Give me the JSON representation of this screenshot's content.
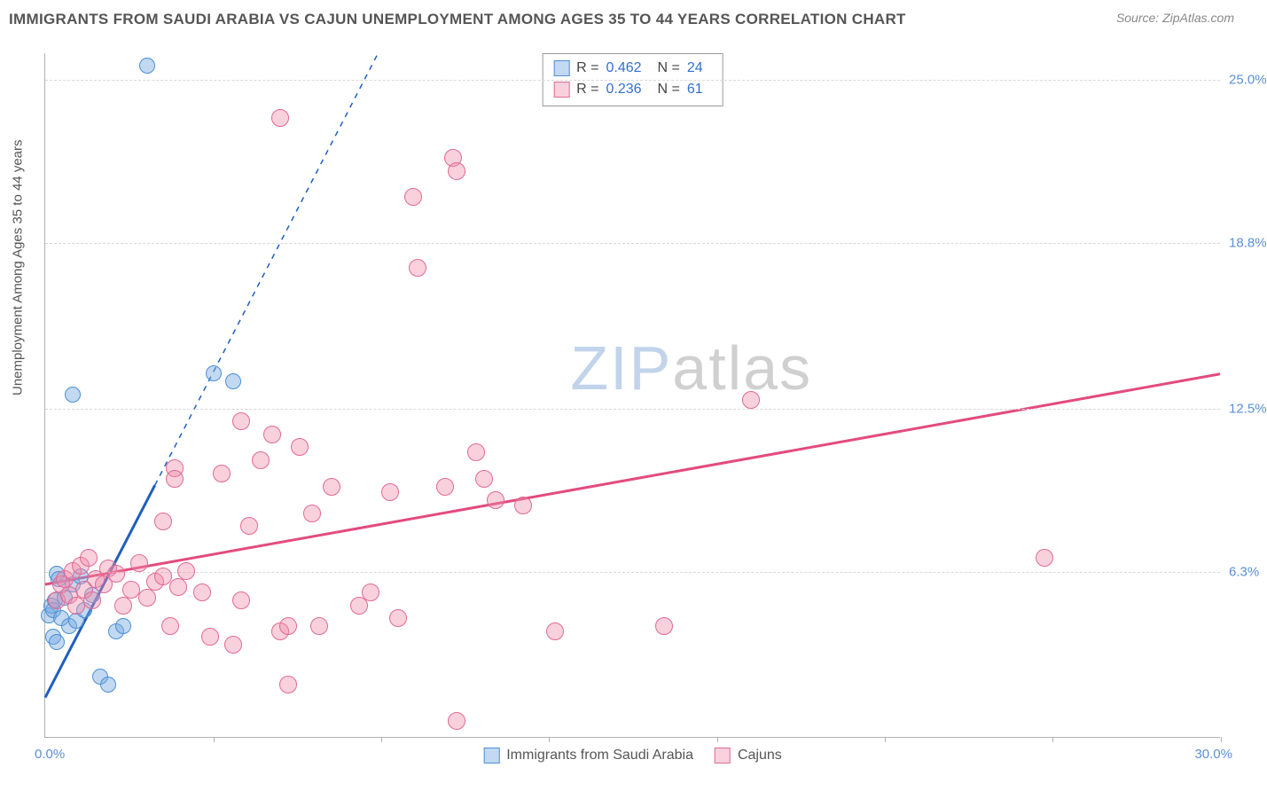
{
  "title": "IMMIGRANTS FROM SAUDI ARABIA VS CAJUN UNEMPLOYMENT AMONG AGES 35 TO 44 YEARS CORRELATION CHART",
  "source": "Source: ZipAtlas.com",
  "y_axis_title": "Unemployment Among Ages 35 to 44 years",
  "watermark_zip": "ZIP",
  "watermark_atlas": "atlas",
  "chart": {
    "type": "scatter",
    "xlim": [
      0,
      30
    ],
    "ylim": [
      0,
      26
    ],
    "x_min_label": "0.0%",
    "x_max_label": "30.0%",
    "xtick_positions": [
      4.29,
      8.57,
      12.86,
      17.14,
      21.43,
      25.71,
      30.0
    ],
    "y_gridlines": [
      6.3,
      12.5,
      18.8,
      25.0
    ],
    "y_grid_labels": [
      "6.3%",
      "12.5%",
      "18.8%",
      "25.0%"
    ],
    "grid_color": "#d8d8d8",
    "axis_color": "#b0b0b0",
    "tick_label_color": "#5b8fd6",
    "background_color": "#ffffff",
    "series": [
      {
        "key": "saudi",
        "label": "Immigrants from Saudi Arabia",
        "point_fill": "rgba(120,170,225,0.45)",
        "point_stroke": "#4b8fd6",
        "point_radius": 9,
        "trend_color": "#1f5fbf",
        "trend_dash": true,
        "trend_from": [
          0,
          1.5
        ],
        "trend_to": [
          8.5,
          26
        ],
        "trend_solid_to_x": 2.8,
        "R": "0.462",
        "N": "24",
        "points": [
          [
            0.1,
            4.6
          ],
          [
            0.15,
            5.0
          ],
          [
            0.2,
            3.8
          ],
          [
            0.2,
            4.8
          ],
          [
            0.25,
            5.2
          ],
          [
            0.3,
            6.2
          ],
          [
            0.3,
            3.6
          ],
          [
            0.35,
            6.0
          ],
          [
            0.4,
            4.5
          ],
          [
            0.5,
            5.3
          ],
          [
            0.6,
            4.2
          ],
          [
            0.7,
            5.8
          ],
          [
            0.8,
            4.4
          ],
          [
            0.9,
            6.1
          ],
          [
            1.0,
            4.8
          ],
          [
            1.2,
            5.4
          ],
          [
            1.4,
            2.3
          ],
          [
            1.6,
            2.0
          ],
          [
            1.8,
            4.0
          ],
          [
            2.0,
            4.2
          ],
          [
            0.7,
            13.0
          ],
          [
            4.3,
            13.8
          ],
          [
            4.8,
            13.5
          ],
          [
            2.6,
            25.5
          ]
        ]
      },
      {
        "key": "cajun",
        "label": "Cajuns",
        "point_fill": "rgba(240,140,170,0.40)",
        "point_stroke": "#e06a95",
        "point_radius": 10,
        "trend_color": "#e34b7d",
        "trend_dash": false,
        "trend_from": [
          0,
          5.8
        ],
        "trend_to": [
          30,
          13.8
        ],
        "R": "0.236",
        "N": "61",
        "points": [
          [
            0.3,
            5.2
          ],
          [
            0.4,
            5.8
          ],
          [
            0.5,
            6.0
          ],
          [
            0.6,
            5.4
          ],
          [
            0.7,
            6.3
          ],
          [
            0.8,
            5.0
          ],
          [
            0.9,
            6.5
          ],
          [
            1.0,
            5.6
          ],
          [
            1.1,
            6.8
          ],
          [
            1.2,
            5.2
          ],
          [
            1.3,
            6.0
          ],
          [
            1.5,
            5.8
          ],
          [
            1.6,
            6.4
          ],
          [
            1.8,
            6.2
          ],
          [
            2.0,
            5.0
          ],
          [
            2.2,
            5.6
          ],
          [
            2.4,
            6.6
          ],
          [
            2.6,
            5.3
          ],
          [
            2.8,
            5.9
          ],
          [
            3.0,
            6.1
          ],
          [
            3.2,
            4.2
          ],
          [
            3.4,
            5.7
          ],
          [
            3.6,
            6.3
          ],
          [
            3.0,
            8.2
          ],
          [
            3.3,
            10.2
          ],
          [
            3.3,
            9.8
          ],
          [
            4.0,
            5.5
          ],
          [
            4.2,
            3.8
          ],
          [
            4.5,
            10.0
          ],
          [
            5.0,
            5.2
          ],
          [
            5.0,
            12.0
          ],
          [
            5.2,
            8.0
          ],
          [
            5.5,
            10.5
          ],
          [
            5.8,
            11.5
          ],
          [
            6.0,
            4.0
          ],
          [
            6.2,
            4.2
          ],
          [
            6.2,
            2.0
          ],
          [
            6.5,
            11.0
          ],
          [
            6.8,
            8.5
          ],
          [
            7.0,
            4.2
          ],
          [
            7.3,
            9.5
          ],
          [
            8.0,
            5.0
          ],
          [
            8.3,
            5.5
          ],
          [
            8.8,
            9.3
          ],
          [
            9.0,
            4.5
          ],
          [
            9.4,
            20.5
          ],
          [
            9.5,
            17.8
          ],
          [
            10.2,
            9.5
          ],
          [
            10.4,
            22.0
          ],
          [
            10.5,
            21.5
          ],
          [
            10.5,
            0.6
          ],
          [
            11.0,
            10.8
          ],
          [
            11.2,
            9.8
          ],
          [
            11.5,
            9.0
          ],
          [
            12.2,
            8.8
          ],
          [
            13.0,
            4.0
          ],
          [
            15.8,
            4.2
          ],
          [
            18.0,
            12.8
          ],
          [
            25.5,
            6.8
          ],
          [
            4.8,
            3.5
          ],
          [
            6.0,
            23.5
          ]
        ]
      }
    ],
    "legend_bottom": [
      {
        "series": "saudi"
      },
      {
        "series": "cajun"
      }
    ]
  }
}
